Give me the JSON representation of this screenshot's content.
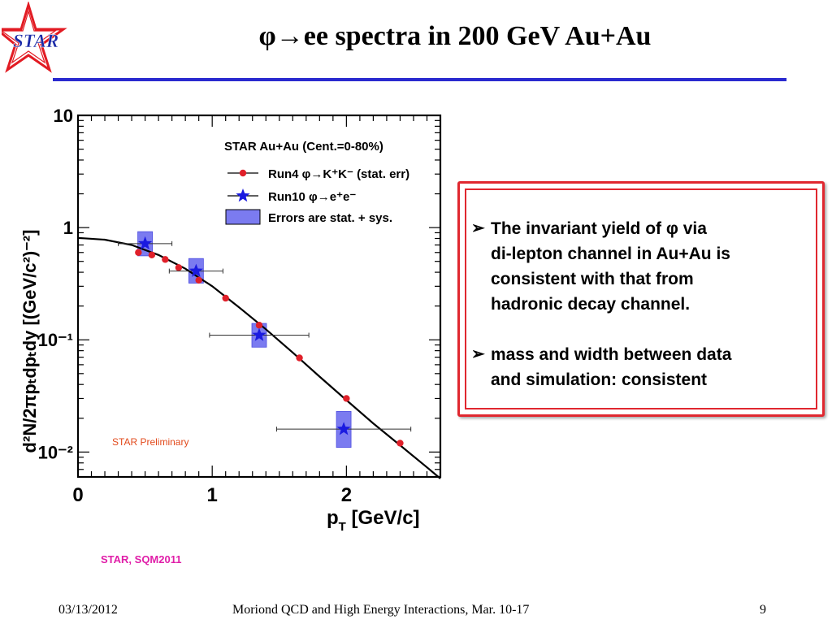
{
  "slide": {
    "logo_text": "STAR",
    "title": "φ→ee spectra in 200 GeV Au+Au",
    "bullets": [
      {
        "arrow": "➢",
        "lines": [
          "The invariant yield of  φ via",
          "di-lepton channel in Au+Au is",
          "consistent with that from",
          "hadronic decay channel."
        ]
      },
      {
        "arrow": "➢",
        "lines": [
          "mass and width between data",
          "and simulation: consistent"
        ]
      }
    ],
    "citation": "STAR, SQM2011",
    "footer": {
      "date": "03/13/2012",
      "conference": "Moriond QCD and High Energy Interactions, Mar. 10-17",
      "page": "9"
    },
    "colors": {
      "accent_rule": "#2a2acf",
      "box_border": "#e0272f",
      "citation": "#e01ea8",
      "logo_red": "#e21b23"
    }
  },
  "chart_data": {
    "type": "scatter",
    "xlabel_main": "p",
    "xlabel_sub": "T",
    "xlabel_rest": " [GeV/c]",
    "ylabel": "d²N/2πpₜdpₜdy [(GeV/c²)⁻²]",
    "xlim": [
      0,
      2.7
    ],
    "ylim": [
      0.006,
      10
    ],
    "log_y": true,
    "x_ticks": [
      "0",
      "1",
      "2"
    ],
    "y_ticks": [
      {
        "value": 10,
        "label": "10"
      },
      {
        "value": 1,
        "label": "1"
      },
      {
        "value": 0.1,
        "label": "10⁻¹"
      },
      {
        "value": 0.01,
        "label": "10⁻²"
      }
    ],
    "legend": {
      "header": "STAR Au+Au (Cent.=0-80%)",
      "entries": [
        {
          "label": "Run4 φ→K⁺K⁻ (stat. err)"
        },
        {
          "label": "Run10 φ→e⁺e⁻"
        },
        {
          "label": "Errors are stat. + sys."
        }
      ],
      "placement": "top-right"
    },
    "annotation": "STAR Preliminary",
    "series": [
      {
        "marker": "circle",
        "color": "#e0202a",
        "x": [
          0.45,
          0.55,
          0.65,
          0.75,
          0.9,
          1.1,
          1.35,
          1.65,
          2.0,
          2.4
        ],
        "y": [
          0.6,
          0.57,
          0.52,
          0.44,
          0.34,
          0.235,
          0.135,
          0.069,
          0.03,
          0.012
        ]
      },
      {
        "marker": "star",
        "color": "#1a1ae0",
        "band_color": "#7b7bf0",
        "x": [
          0.5,
          0.88,
          1.35,
          1.98
        ],
        "y": [
          0.72,
          0.41,
          0.11,
          0.016
        ],
        "x_err": [
          0.2,
          0.2,
          0.37,
          0.5
        ],
        "y_err_band_low": [
          0.56,
          0.32,
          0.086,
          0.011
        ],
        "y_err_band_high": [
          0.92,
          0.53,
          0.14,
          0.023
        ]
      }
    ],
    "fit_curve": {
      "color": "#000000",
      "x": [
        0,
        0.2,
        0.4,
        0.6,
        0.8,
        1.0,
        1.2,
        1.4,
        1.6,
        1.8,
        2.0,
        2.2,
        2.4,
        2.6,
        2.7
      ],
      "y": [
        0.81,
        0.78,
        0.7,
        0.57,
        0.43,
        0.3,
        0.195,
        0.124,
        0.077,
        0.047,
        0.029,
        0.018,
        0.0115,
        0.0073,
        0.0058
      ]
    }
  }
}
